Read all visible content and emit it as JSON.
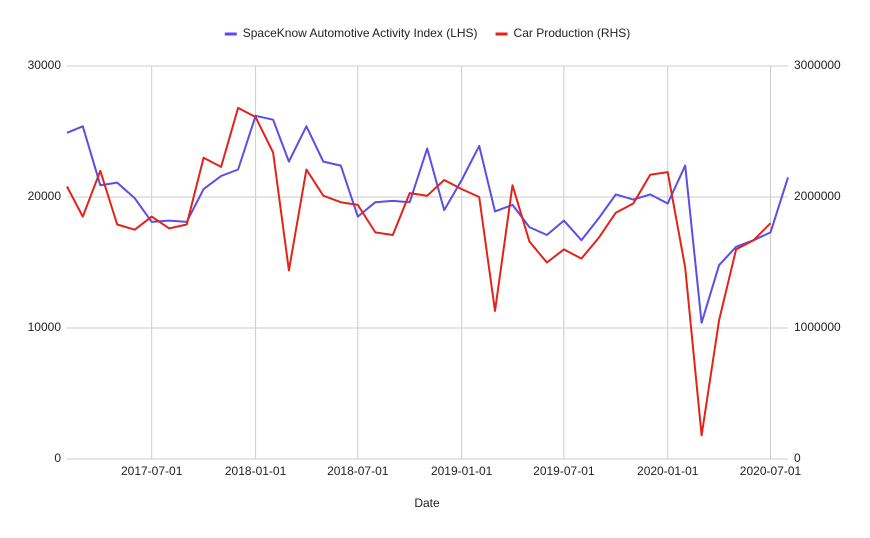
{
  "chart_data": {
    "type": "line",
    "x_label": "Date",
    "x": [
      "2017-02-01",
      "2017-03-01",
      "2017-04-01",
      "2017-05-01",
      "2017-06-01",
      "2017-07-01",
      "2017-08-01",
      "2017-09-01",
      "2017-10-01",
      "2017-11-01",
      "2017-12-01",
      "2018-01-01",
      "2018-02-01",
      "2018-03-01",
      "2018-04-01",
      "2018-05-01",
      "2018-06-01",
      "2018-07-01",
      "2018-08-01",
      "2018-09-01",
      "2018-10-01",
      "2018-11-01",
      "2018-12-01",
      "2019-01-01",
      "2019-02-01",
      "2019-03-01",
      "2019-04-01",
      "2019-05-01",
      "2019-06-01",
      "2019-07-01",
      "2019-08-01",
      "2019-09-01",
      "2019-10-01",
      "2019-11-01",
      "2019-12-01",
      "2020-01-01",
      "2020-02-01",
      "2020-03-01",
      "2020-04-01",
      "2020-05-01",
      "2020-06-01",
      "2020-07-01",
      "2020-08-01"
    ],
    "xlim": [
      "2017-02-01",
      "2020-08-01"
    ],
    "xticks": [
      "2017-07-01",
      "2018-01-01",
      "2018-07-01",
      "2019-01-01",
      "2019-07-01",
      "2020-01-01",
      "2020-07-01"
    ],
    "ylim": [
      0,
      30000
    ],
    "yticks": [
      0,
      10000,
      20000,
      30000
    ],
    "y2lim": [
      0,
      3000000
    ],
    "y2ticks": [
      0,
      1000000,
      2000000,
      3000000
    ],
    "grid": true,
    "legend": "top",
    "series": [
      {
        "name": "SpaceKnow Automotive Activity Index (LHS)",
        "color": "#5b4ee8",
        "values": [
          24900,
          25400,
          20900,
          21100,
          19900,
          18100,
          18200,
          18100,
          20600,
          21600,
          22100,
          26200,
          25900,
          22700,
          25400,
          22700,
          22400,
          18500,
          19600,
          19700,
          19600,
          23700,
          19000,
          21300,
          23900,
          18900,
          19400,
          17700,
          17100,
          18200,
          16700,
          18400,
          20200,
          19800,
          20200,
          19500,
          22400,
          10400,
          14800,
          16200,
          16700,
          17300,
          21500
        ]
      },
      {
        "name": "Car Production (RHS)",
        "color": "#e2231a",
        "axis": "y2",
        "values": [
          2080000,
          1850000,
          2200000,
          1790000,
          1750000,
          1850000,
          1760000,
          1790000,
          2300000,
          2230000,
          2680000,
          2610000,
          2340000,
          1440000,
          2210000,
          2010000,
          1960000,
          1940000,
          1730000,
          1710000,
          2030000,
          2010000,
          2130000,
          2060000,
          2000000,
          1130000,
          2090000,
          1660000,
          1500000,
          1600000,
          1530000,
          1690000,
          1880000,
          1950000,
          2170000,
          2190000,
          1460000,
          180000,
          1060000,
          1600000,
          1670000,
          1800000,
          null
        ]
      }
    ]
  }
}
